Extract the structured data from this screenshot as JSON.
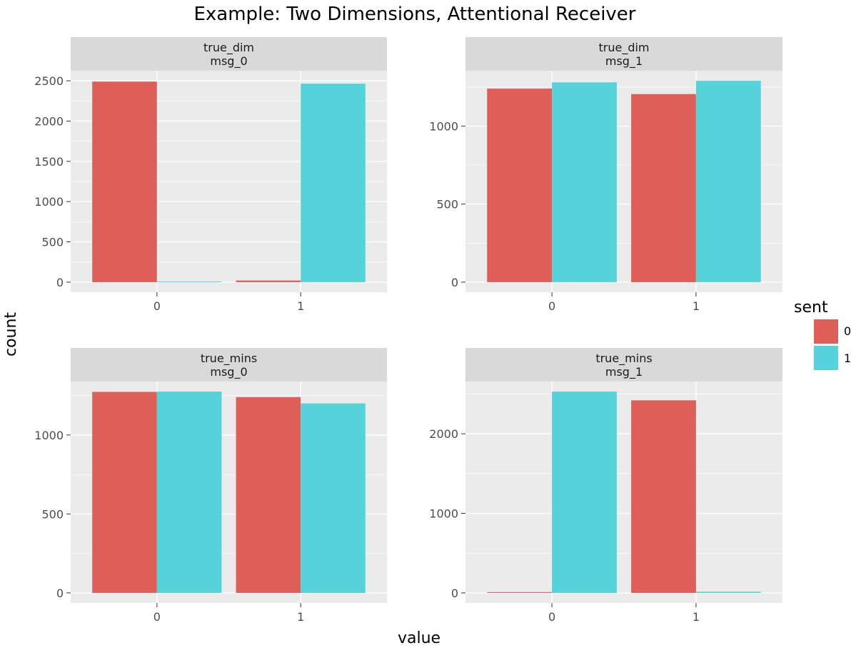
{
  "title": "Example: Two Dimensions, Attentional Receiver",
  "axes": {
    "xlabel": "value",
    "ylabel": "count"
  },
  "legend": {
    "title": "sent",
    "placement": "right",
    "entries": [
      {
        "label": "0",
        "color": "#DE5F57"
      },
      {
        "label": "1",
        "color": "#56D2DA"
      }
    ]
  },
  "chart_data": {
    "type": "bar",
    "layout": "facet_grid",
    "grid": true,
    "categories": [
      "0",
      "1"
    ],
    "panels": [
      {
        "strip": [
          "true_dim",
          "msg_0"
        ],
        "ylim": [
          0,
          2500
        ],
        "yticks": [
          0,
          500,
          1000,
          1500,
          2000,
          2500
        ],
        "series": [
          {
            "name": "0",
            "values": [
              2490,
              20
            ]
          },
          {
            "name": "1",
            "values": [
              8,
              2465
            ]
          }
        ]
      },
      {
        "strip": [
          "true_dim",
          "msg_1"
        ],
        "ylim": [
          0,
          1290
        ],
        "yticks": [
          0,
          500,
          1000
        ],
        "series": [
          {
            "name": "0",
            "values": [
              1240,
              1205
            ]
          },
          {
            "name": "1",
            "values": [
              1280,
              1290
            ]
          }
        ]
      },
      {
        "strip": [
          "true_mins",
          "msg_0"
        ],
        "ylim": [
          0,
          1275
        ],
        "yticks": [
          0,
          500,
          1000
        ],
        "series": [
          {
            "name": "0",
            "values": [
              1273,
              1240
            ]
          },
          {
            "name": "1",
            "values": [
              1275,
              1200
            ]
          }
        ]
      },
      {
        "strip": [
          "true_mins",
          "msg_1"
        ],
        "ylim": [
          0,
          2530
        ],
        "yticks": [
          0,
          1000,
          2000
        ],
        "series": [
          {
            "name": "0",
            "values": [
              10,
              2420
            ]
          },
          {
            "name": "1",
            "values": [
              2530,
              15
            ]
          }
        ]
      }
    ]
  }
}
